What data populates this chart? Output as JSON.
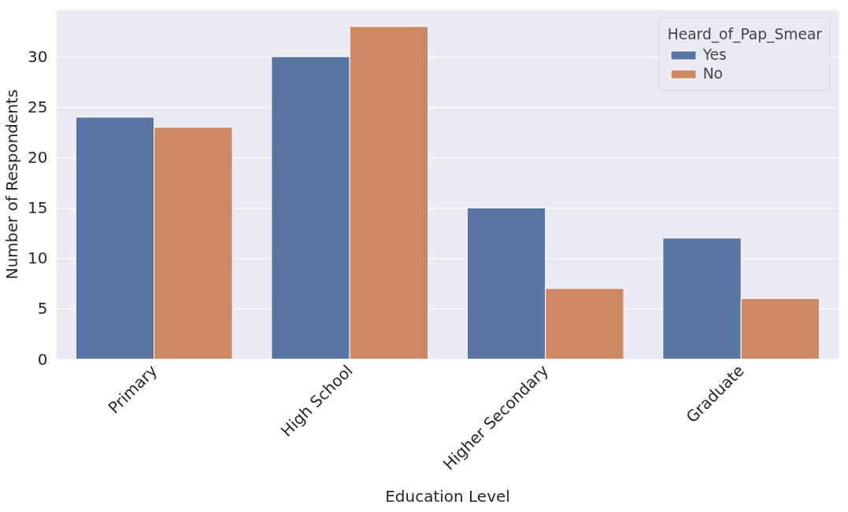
{
  "chart_data": {
    "type": "bar",
    "xlabel": "Education Level",
    "ylabel": "Number of Respondents",
    "legend_title": "Heard_of_Pap_Smear",
    "categories": [
      "Primary",
      "High School",
      "Higher Secondary",
      "Graduate"
    ],
    "series": [
      {
        "name": "Yes",
        "color": "#5975a4",
        "values": [
          24,
          30,
          15,
          12
        ]
      },
      {
        "name": "No",
        "color": "#cc8963",
        "values": [
          23,
          33,
          7,
          6
        ]
      }
    ],
    "ylim": [
      0,
      34.65
    ],
    "yticks": [
      0,
      5,
      10,
      15,
      20,
      25,
      30
    ],
    "grid": "y",
    "legend": "top right"
  }
}
